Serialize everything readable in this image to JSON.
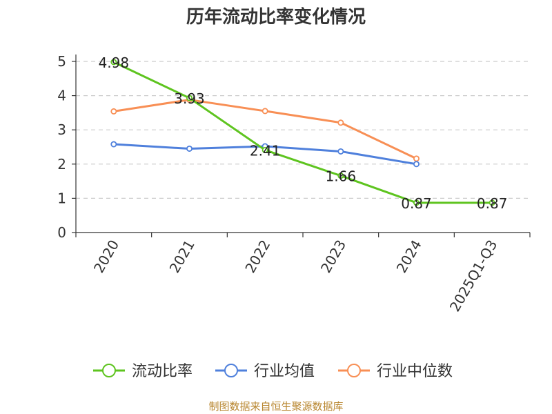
{
  "title": "历年流动比率变化情况",
  "source": "制图数据来自恒生聚源数据库",
  "chart_data": {
    "type": "line",
    "categories": [
      "2020",
      "2021",
      "2022",
      "2023",
      "2024",
      "2025Q1-Q3"
    ],
    "ylim": [
      0,
      5
    ],
    "yticks": [
      0,
      1,
      2,
      3,
      4,
      5
    ],
    "grid": true,
    "legend_position": "bottom",
    "series": [
      {
        "name": "流动比率",
        "color": "#5ec41f",
        "values": [
          4.98,
          3.93,
          2.41,
          1.66,
          0.87,
          0.87
        ],
        "labels": [
          "4.98",
          "3.93",
          "2.41",
          "1.66",
          "0.87",
          "0.87"
        ]
      },
      {
        "name": "行业均值",
        "color": "#4f80dc",
        "values": [
          2.58,
          2.45,
          2.52,
          2.37,
          2.0,
          null
        ]
      },
      {
        "name": "行业中位数",
        "color": "#f88f55",
        "values": [
          3.54,
          3.88,
          3.55,
          3.21,
          2.16,
          null
        ]
      }
    ]
  }
}
